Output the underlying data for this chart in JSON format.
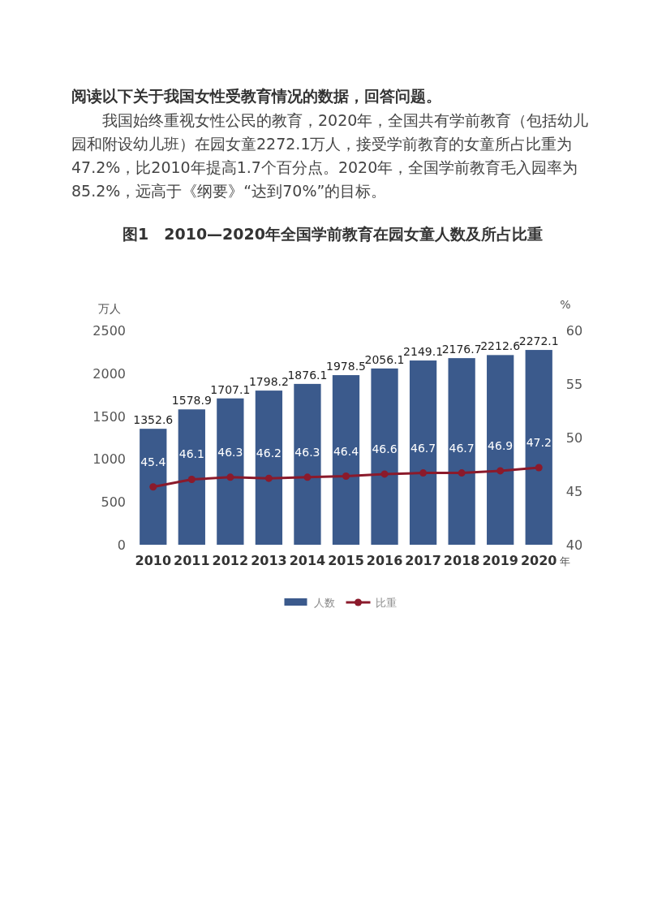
{
  "chart_data": {
    "type": "bar",
    "annotations": [
      "阅读以下关于我国女性受教育情况的数据，回答问题。",
      "我国始终重视女性公民的教育，2020年，全国共有学前教育（包括幼儿园和附设幼儿班）在园女童2272.1万人，接受学前教育的女童所占比重为47.2%，比2010年提高1.7个百分点。2020年，全国学前教育毛入园率为85.2%，远高于《纲要》“达到70%”的目标。"
    ],
    "title": "图1　2010—2020年全国学前教育在园女童人数及所占比重",
    "ylabel": "万人",
    "y2label": "%",
    "xlabel": "年",
    "categories": [
      "2010",
      "2011",
      "2012",
      "2013",
      "2014",
      "2015",
      "2016",
      "2017",
      "2018",
      "2019",
      "2020"
    ],
    "series": [
      {
        "name": "人数",
        "color": "#3b5a8c",
        "values": [
          1352.6,
          1578.9,
          1707.1,
          1798.2,
          1876.1,
          1978.5,
          2056.1,
          2149.1,
          2176.7,
          2212.6,
          2272.1
        ]
      },
      {
        "name": "比重",
        "type": "line",
        "axis": "y2",
        "color": "#8b1a2b",
        "values": [
          45.4,
          46.1,
          46.3,
          46.2,
          46.3,
          46.4,
          46.6,
          46.7,
          46.7,
          46.9,
          47.2
        ]
      }
    ],
    "ylim": [
      0,
      2500
    ],
    "yticks": [
      0,
      500,
      1000,
      1500,
      2000,
      2500
    ],
    "y2lim": [
      40,
      60
    ],
    "y2ticks": [
      40,
      45,
      50,
      55,
      60
    ],
    "data_labels": true,
    "marker": "circle",
    "legend": "bottom",
    "grid": false
  }
}
